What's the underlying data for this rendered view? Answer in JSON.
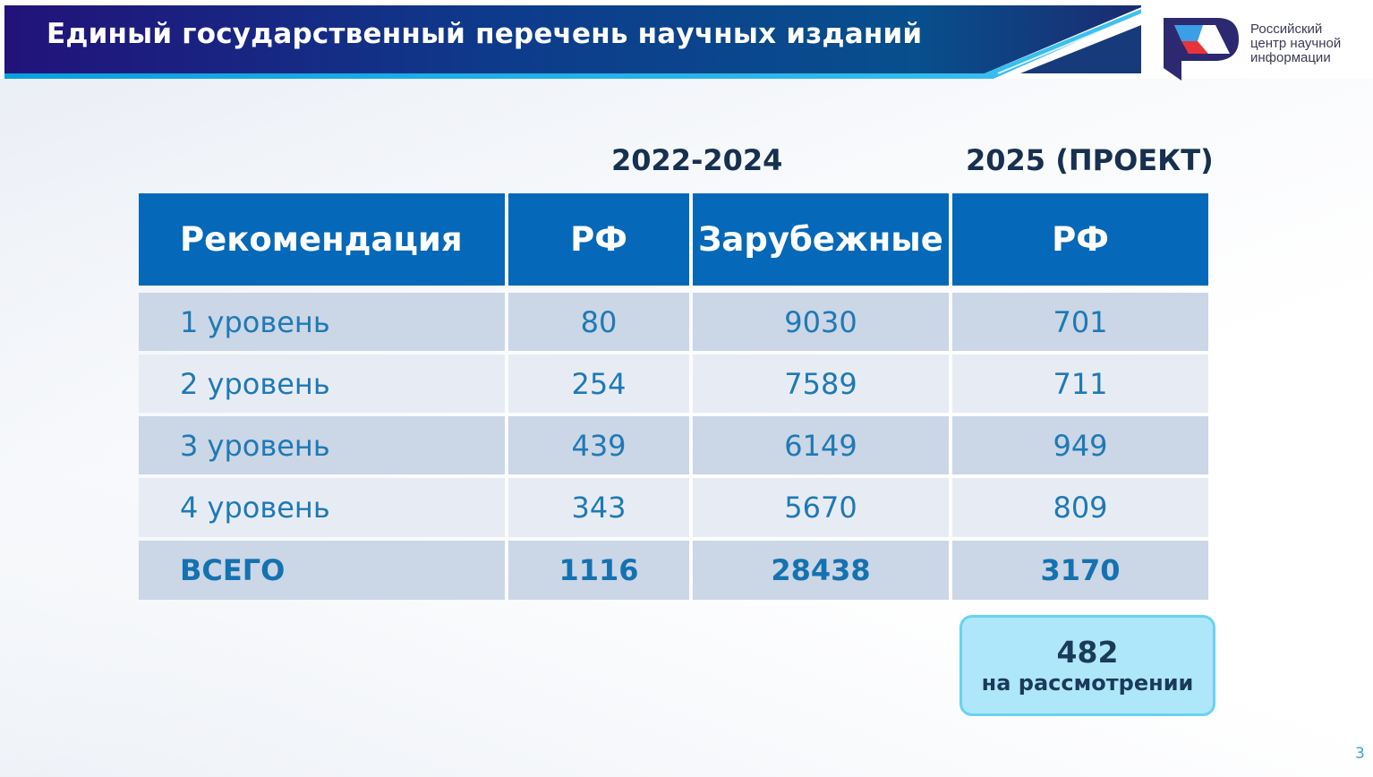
{
  "header": {
    "title": "Единый государственный перечень научных изданий"
  },
  "logo": {
    "icon": "rcni-logo-icon",
    "lines": [
      "Российский",
      "центр научной",
      "информации"
    ]
  },
  "periods": {
    "first": "2022-2024",
    "second": "2025 (ПРОЕКТ)"
  },
  "table": {
    "headers": [
      "Рекомендация",
      "РФ",
      "Зарубежные",
      "РФ"
    ],
    "rows": [
      [
        "1 уровень",
        "80",
        "9030",
        "701"
      ],
      [
        "2 уровень",
        "254",
        "7589",
        "711"
      ],
      [
        "3 уровень",
        "439",
        "6149",
        "949"
      ],
      [
        "4 уровень",
        "343",
        "5670",
        "809"
      ]
    ],
    "total": [
      "ВСЕГО",
      "1116",
      "28438",
      "3170"
    ]
  },
  "review": {
    "count": "482",
    "label": "на рассмотрении"
  },
  "footer": {
    "slide_number": "3"
  },
  "colors": {
    "header_blue": "#0668b8",
    "banner_dark": "#1b2f86",
    "text_blue": "#1f79b4",
    "review_bg": "#aee6fa"
  }
}
